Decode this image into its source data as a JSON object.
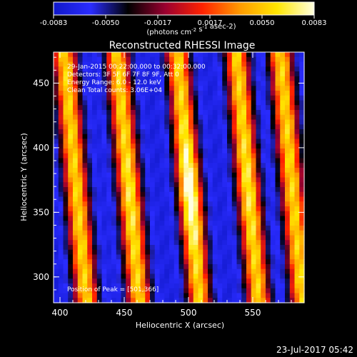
{
  "chart_data": {
    "type": "heatmap",
    "title": "Reconstructed RHESSI Image",
    "xlabel": "Heliocentric X (arcsec)",
    "ylabel": "Heliocentric Y (arcsec)",
    "xlim": [
      395,
      590
    ],
    "ylim": [
      280,
      474
    ],
    "x_ticks": [
      400,
      450,
      500,
      550
    ],
    "y_ticks": [
      300,
      350,
      400,
      450
    ],
    "colorbar": {
      "min": -0.0083,
      "max": 0.0083,
      "ticks": [
        "-0.0083",
        "-0.0050",
        "-0.0017",
        "0.0017",
        "0.0050",
        "0.0083"
      ],
      "unit_label": "(photons cm-2 s-1 asec-2)",
      "colormap": [
        "#1018c8",
        "#2a2cff",
        "#000000",
        "#9a0030",
        "#ff2200",
        "#ff9a00",
        "#ffe600",
        "#ffffe0"
      ]
    },
    "stripe_crests_x": [
      413,
      454,
      501,
      547,
      581
    ],
    "stripe_tilt": "upper-left to lower-right",
    "info_lines": [
      "29-Jan-2015 00:22:00.000 to 00:32:00.000",
      "Detectors: 3F 5F 6F 7F 8F 9F, Att 0",
      "Energy Range: 6.0 - 12.0 keV",
      "Clean    Total counts: 3.06E+04"
    ],
    "peak_label": "Position of Peak = [501,366]",
    "peak": {
      "x": 501,
      "y": 366
    },
    "timestamp": "23-Jul-2017 05:42"
  }
}
